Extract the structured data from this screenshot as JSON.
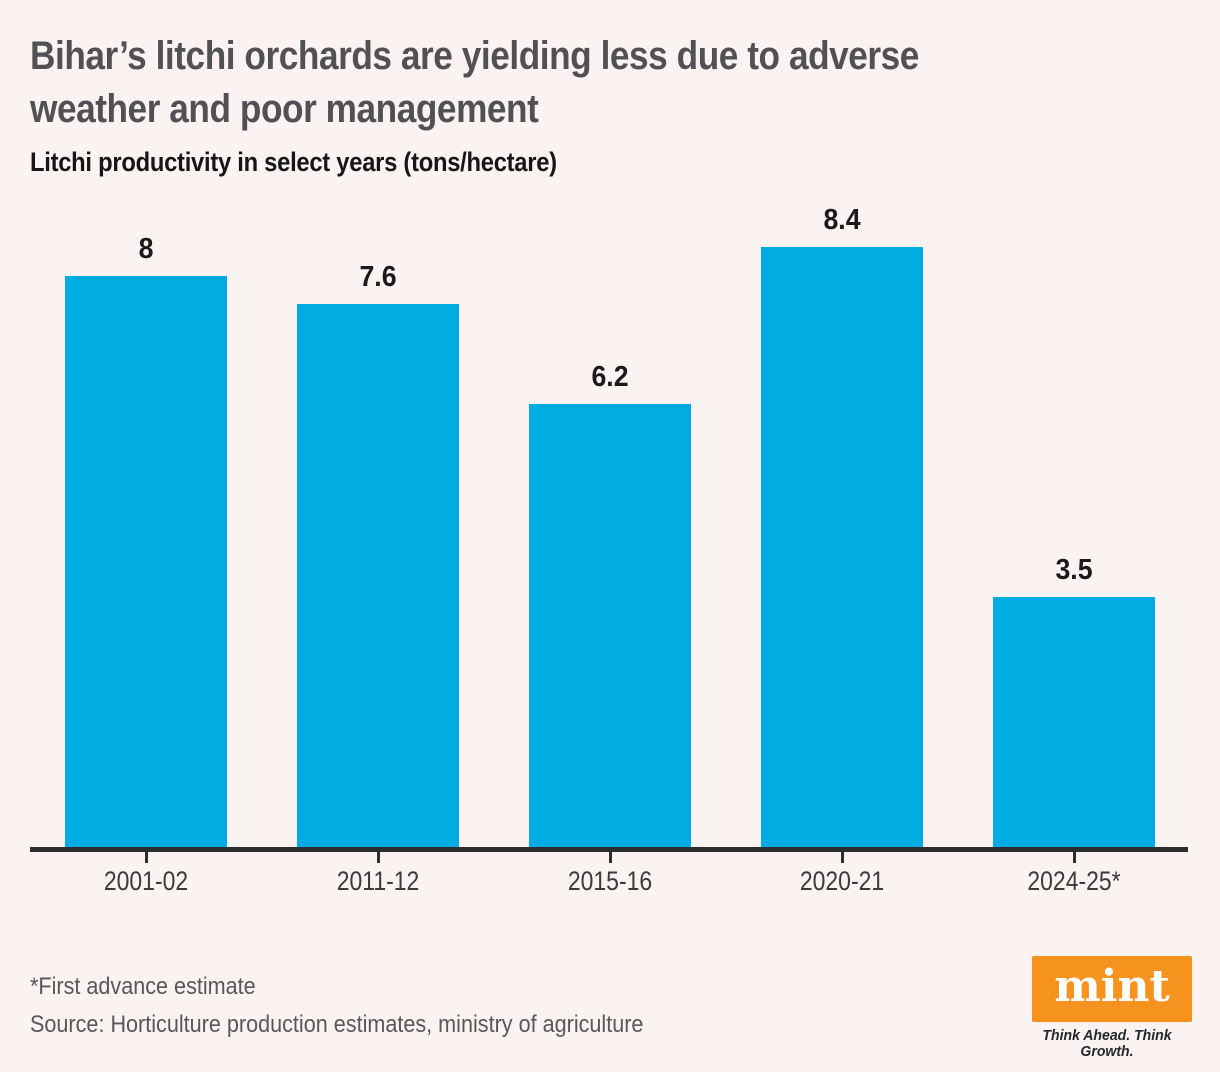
{
  "title": {
    "text": "Bihar’s litchi orchards are yielding less due to adverse weather and poor management",
    "lines": [
      "Bihar’s litchi orchards are yielding less due to adverse",
      "weather and poor management"
    ]
  },
  "subtitle": "Litchi productivity in select years (tons/hectare)",
  "chart_data": {
    "type": "bar",
    "categories": [
      "2001-02",
      "2011-12",
      "2015-16",
      "2020-21",
      "2024-25*"
    ],
    "values": [
      8,
      7.6,
      6.2,
      8.4,
      3.5
    ],
    "value_labels": [
      "8",
      "7.6",
      "6.2",
      "8.4",
      "3.5"
    ],
    "title": "Litchi productivity in select years (tons/hectare)",
    "xlabel": "",
    "ylabel": "tons/hectare",
    "ylim": [
      0,
      9
    ],
    "grid": false,
    "legend": "none",
    "bar_color": "#00ace2",
    "axis_color": "#2e2e2e"
  },
  "footnote": "*First advance estimate",
  "source": "Source: Horticulture production estimates, ministry of agriculture",
  "logo": {
    "text": "mint",
    "tagline": "Think Ahead. Think Growth.",
    "bg_color": "#f6921e"
  },
  "colors": {
    "background": "#fbf2f2",
    "bar": "#00ace2",
    "axis": "#2e2e2e",
    "title_text": "#515155",
    "dark_text": "#161616",
    "muted_text": "#585858"
  }
}
